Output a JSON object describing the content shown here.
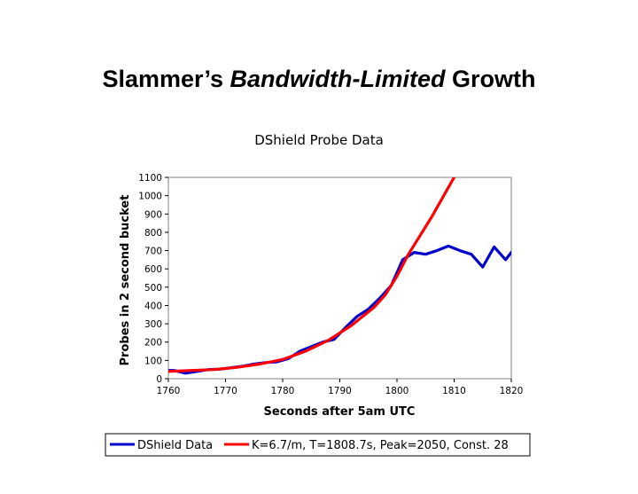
{
  "slide": {
    "title_part1": "Slammer’s ",
    "title_emph": "Bandwidth-Limited",
    "title_part2": " Growth"
  },
  "chart_data": {
    "type": "line",
    "title": "DShield Probe Data",
    "xlabel": "Seconds after 5am UTC",
    "ylabel": "Probes in 2 second bucket",
    "xlim": [
      1760,
      1820
    ],
    "ylim": [
      0,
      1100
    ],
    "xticks": [
      1760,
      1770,
      1780,
      1790,
      1800,
      1810,
      1820
    ],
    "yticks": [
      0,
      100,
      200,
      300,
      400,
      500,
      600,
      700,
      800,
      900,
      1000,
      1100
    ],
    "grid": false,
    "legend_position": "bottom",
    "series": [
      {
        "name": "DShield Data",
        "color": "#0000cc",
        "x": [
          1760,
          1761,
          1763,
          1765,
          1767,
          1769,
          1771,
          1773,
          1775,
          1777,
          1779,
          1781,
          1783,
          1785,
          1787,
          1789,
          1791,
          1793,
          1795,
          1797,
          1799,
          1801,
          1803,
          1805,
          1807,
          1809,
          1811,
          1813,
          1815,
          1817,
          1819,
          1820
        ],
        "y": [
          45,
          45,
          30,
          40,
          50,
          52,
          60,
          68,
          80,
          88,
          92,
          110,
          150,
          175,
          200,
          215,
          280,
          340,
          380,
          440,
          510,
          650,
          690,
          680,
          700,
          725,
          700,
          680,
          610,
          720,
          650,
          690
        ]
      },
      {
        "name": "K=6.7/m, T=1808.7s, Peak=2050, Const. 28",
        "color": "#ff0000",
        "x": [
          1760,
          1764,
          1768,
          1772,
          1776,
          1780,
          1784,
          1788,
          1792,
          1796,
          1798,
          1800,
          1802,
          1804,
          1806,
          1808,
          1810
        ],
        "y": [
          40,
          45,
          50,
          62,
          80,
          105,
          150,
          210,
          290,
          390,
          460,
          560,
          680,
          780,
          880,
          990,
          1100
        ]
      }
    ]
  }
}
